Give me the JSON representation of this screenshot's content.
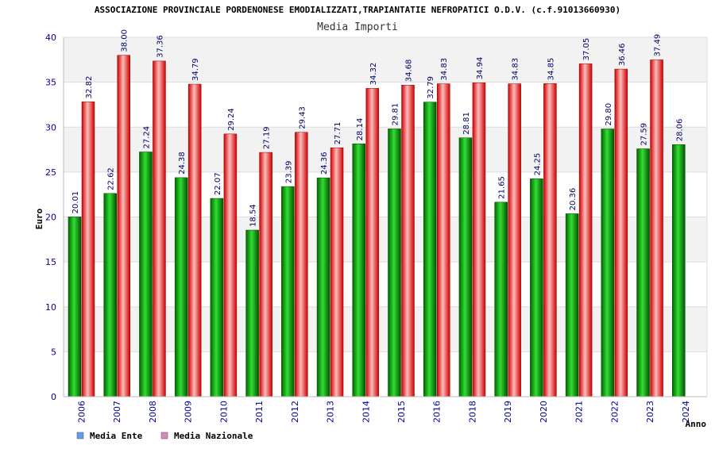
{
  "chart_data": {
    "type": "bar",
    "title": "ASSOCIAZIONE PROVINCIALE PORDENONESE EMODIALIZZATI,TRAPIANTATIE NEFROPATICI O.D.V. (c.f.91013660930)",
    "subtitle": "Media Importi",
    "xlabel": "Anno",
    "ylabel": "Euro",
    "ylim": [
      0,
      40
    ],
    "yticks": [
      0,
      5,
      10,
      15,
      20,
      25,
      30,
      35,
      40
    ],
    "grid": true,
    "legend_position": "bottom-left",
    "categories": [
      "2006",
      "2007",
      "2008",
      "2009",
      "2010",
      "2011",
      "2012",
      "2013",
      "2014",
      "2015",
      "2016",
      "2018",
      "2019",
      "2020",
      "2021",
      "2022",
      "2023",
      "2024"
    ],
    "series": [
      {
        "name": "Media Ente",
        "legend_color": "#6699ee",
        "bar_color": "#00aa00",
        "values": [
          20.01,
          22.62,
          27.24,
          24.38,
          22.07,
          18.54,
          23.39,
          24.36,
          28.14,
          29.81,
          32.79,
          28.81,
          21.65,
          24.25,
          20.36,
          29.8,
          27.59,
          28.06
        ],
        "labels": [
          "20.01",
          "22.62",
          "27.24",
          "24.38",
          "22.07",
          "18.54",
          "23.39",
          "24.36",
          "28.14",
          "29.81",
          "32.79",
          "28.81",
          "21.65",
          "24.25",
          "20.36",
          "29.80",
          "27.59",
          "28.06"
        ]
      },
      {
        "name": "Media Nazionale",
        "legend_color": "#dd88bb",
        "bar_color": "#ee1111",
        "values": [
          32.82,
          38.0,
          37.36,
          34.79,
          29.24,
          27.19,
          29.43,
          27.71,
          34.32,
          34.68,
          34.83,
          34.94,
          34.83,
          34.85,
          37.05,
          36.46,
          37.49,
          null
        ],
        "labels": [
          "32.82",
          "38.00",
          "37.36",
          "34.79",
          "29.24",
          "27.19",
          "29.43",
          "27.71",
          "34.32",
          "34.68",
          "34.83",
          "34.94",
          "34.83",
          "34.85",
          "37.05",
          "36.46",
          "37.49",
          ""
        ]
      }
    ]
  }
}
